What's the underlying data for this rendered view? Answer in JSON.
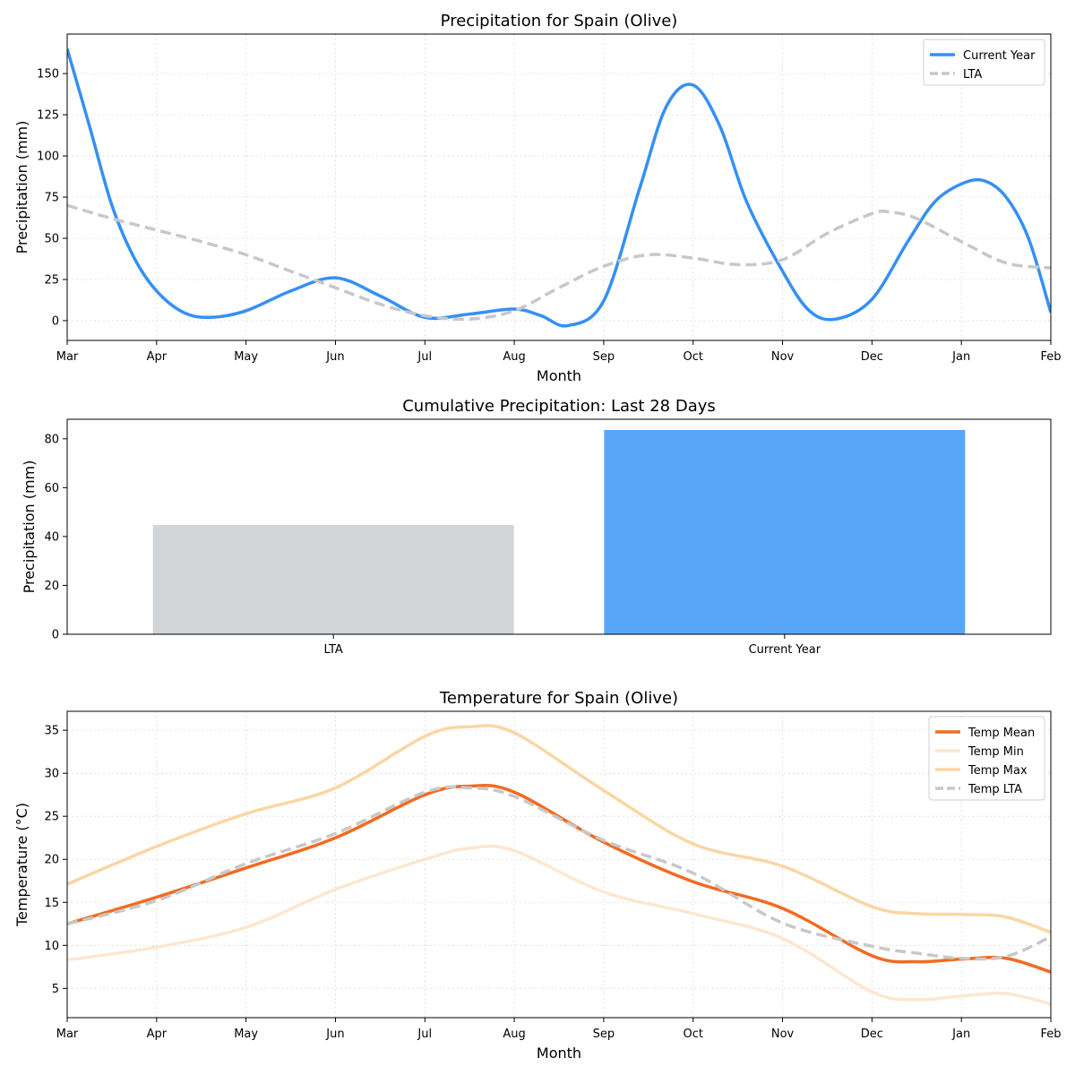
{
  "chart_data": [
    {
      "type": "line",
      "title": "Precipitation for Spain (Olive)",
      "xlabel": "Month",
      "ylabel": "Precipitation (mm)",
      "categories": [
        "Mar",
        "Apr",
        "May",
        "Jun",
        "Jul",
        "Aug",
        "Sep",
        "Oct",
        "Nov",
        "Dec",
        "Jan",
        "Feb"
      ],
      "ylim": [
        -12,
        174
      ],
      "yticks": [
        0,
        25,
        50,
        75,
        100,
        125,
        150
      ],
      "grid": true,
      "legend_position": "top-right",
      "series": [
        {
          "name": "Current Year",
          "color": "#3590f3",
          "dash": false,
          "x": [
            0,
            0.25,
            0.5,
            0.75,
            1,
            1.3,
            1.6,
            2,
            2.5,
            3,
            3.5,
            4,
            4.5,
            5,
            5.3,
            5.6,
            6,
            6.4,
            6.7,
            7,
            7.3,
            7.6,
            8,
            8.3,
            8.6,
            9,
            9.4,
            9.7,
            10,
            10.25,
            10.5,
            10.75,
            11
          ],
          "values": [
            165,
            118,
            70,
            38,
            18,
            5,
            2,
            6,
            18,
            26,
            15,
            2,
            4,
            7,
            3,
            -3,
            12,
            80,
            130,
            143,
            118,
            72,
            30,
            6,
            1,
            13,
            48,
            72,
            83,
            85,
            75,
            50,
            5
          ]
        },
        {
          "name": "LTA",
          "color": "#c8c8c8",
          "dash": true,
          "x": [
            0,
            0.5,
            1,
            1.5,
            2,
            2.5,
            3,
            3.5,
            4,
            4.5,
            5,
            5.5,
            6,
            6.5,
            7,
            7.5,
            8,
            8.5,
            9,
            9.2,
            9.5,
            10,
            10.5,
            11
          ],
          "values": [
            70,
            62,
            55,
            48,
            40,
            30,
            20,
            10,
            3,
            1,
            6,
            20,
            33,
            40,
            38,
            34,
            37,
            53,
            65,
            66,
            62,
            48,
            35,
            32
          ]
        }
      ]
    },
    {
      "type": "bar",
      "title": "Cumulative Precipitation: Last 28 Days",
      "ylabel": "Precipitation (mm)",
      "categories": [
        "LTA",
        "Current Year"
      ],
      "values": [
        44.7,
        83.6
      ],
      "colors": [
        "#d1d5d8",
        "#58a6fa"
      ],
      "ylim": [
        0,
        88
      ],
      "yticks": [
        0,
        20,
        40,
        60,
        80
      ]
    },
    {
      "type": "line",
      "title": "Temperature for Spain (Olive)",
      "xlabel": "Month",
      "ylabel": "Temperature (°C)",
      "categories": [
        "Mar",
        "Apr",
        "May",
        "Jun",
        "Jul",
        "Aug",
        "Sep",
        "Oct",
        "Nov",
        "Dec",
        "Jan",
        "Feb"
      ],
      "ylim": [
        1.6,
        37.2
      ],
      "yticks": [
        5,
        10,
        15,
        20,
        25,
        30,
        35
      ],
      "grid": true,
      "legend_position": "top-right",
      "series": [
        {
          "name": "Temp Mean",
          "color": "#f26b21",
          "dash": false,
          "x": [
            0,
            1,
            2,
            3,
            4,
            4.5,
            5,
            6,
            7,
            8,
            9,
            9.5,
            10,
            10.5,
            11
          ],
          "values": [
            12.5,
            15.6,
            19,
            22.5,
            27.5,
            28.5,
            27.8,
            22,
            17.4,
            14.3,
            8.8,
            8.1,
            8.4,
            8.5,
            6.9
          ]
        },
        {
          "name": "Temp Min",
          "color": "#fee6d0",
          "dash": false,
          "x": [
            0,
            1,
            2,
            3,
            4,
            4.5,
            5,
            6,
            7,
            8,
            9,
            9.5,
            10,
            10.5,
            11
          ],
          "values": [
            8.3,
            9.8,
            12.1,
            16.5,
            20,
            21.3,
            21,
            16.2,
            13.7,
            10.8,
            4.6,
            3.7,
            4.1,
            4.4,
            3.2
          ]
        },
        {
          "name": "Temp Max",
          "color": "#fad6a5",
          "dash": false,
          "x": [
            0,
            1,
            2,
            3,
            4,
            4.5,
            5,
            6,
            7,
            8,
            9,
            9.5,
            10,
            10.5,
            11
          ],
          "values": [
            17.1,
            21.5,
            25.3,
            28.3,
            34.3,
            35.4,
            34.7,
            28,
            21.8,
            19.2,
            14.5,
            13.7,
            13.6,
            13.3,
            11.5
          ]
        },
        {
          "name": "Temp LTA",
          "color": "#c8c8c8",
          "dash": true,
          "x": [
            0,
            1,
            2,
            3,
            4,
            4.5,
            5,
            6,
            7,
            8,
            9,
            9.5,
            10,
            10.5,
            11
          ],
          "values": [
            12.5,
            15.2,
            19.5,
            23,
            27.8,
            28.3,
            27.3,
            22.2,
            18.4,
            12.6,
            9.9,
            9.1,
            8.5,
            8.7,
            11
          ]
        }
      ]
    }
  ]
}
